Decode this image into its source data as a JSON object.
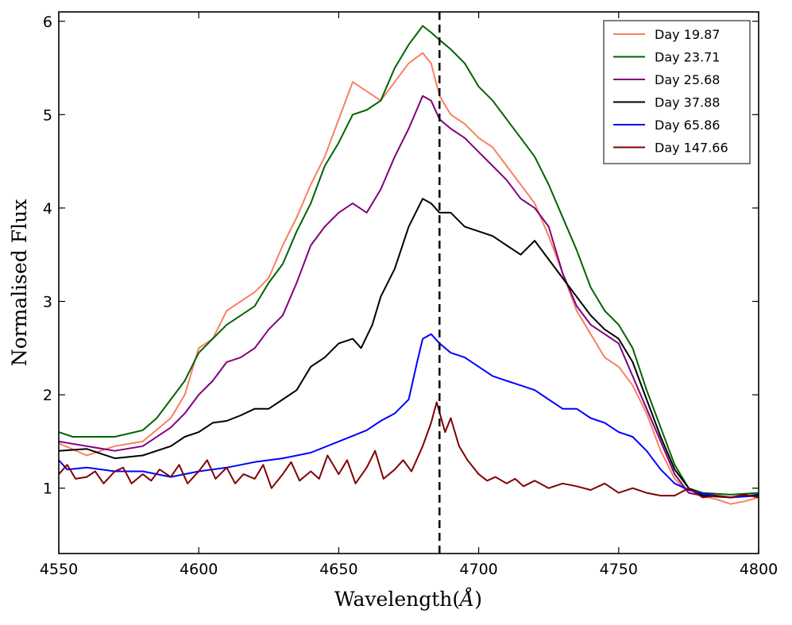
{
  "chart_data": {
    "type": "line",
    "title": "",
    "xlabel": "Wavelength($\\AA$)",
    "xlabel_text": "Wavelength(",
    "xlabel_unit": "Å",
    "xlabel_close": ")",
    "ylabel": "Normalised Flux",
    "xlim": [
      4550,
      4800
    ],
    "ylim": [
      0.3,
      6.1
    ],
    "xticks": [
      4550,
      4600,
      4650,
      4700,
      4750,
      4800
    ],
    "yticks": [
      1,
      2,
      3,
      4,
      5,
      6
    ],
    "legend_position": "top-right",
    "vline": {
      "x": 4686,
      "style": "dashed",
      "color": "#000000"
    },
    "series": [
      {
        "name": "Day 19.87",
        "color": "#fa8060",
        "points": [
          [
            4550,
            1.48
          ],
          [
            4560,
            1.35
          ],
          [
            4570,
            1.45
          ],
          [
            4580,
            1.5
          ],
          [
            4590,
            1.75
          ],
          [
            4595,
            2.0
          ],
          [
            4600,
            2.5
          ],
          [
            4605,
            2.6
          ],
          [
            4610,
            2.9
          ],
          [
            4615,
            3.0
          ],
          [
            4620,
            3.1
          ],
          [
            4625,
            3.25
          ],
          [
            4630,
            3.6
          ],
          [
            4635,
            3.9
          ],
          [
            4640,
            4.25
          ],
          [
            4645,
            4.55
          ],
          [
            4650,
            4.95
          ],
          [
            4655,
            5.35
          ],
          [
            4660,
            5.25
          ],
          [
            4665,
            5.15
          ],
          [
            4670,
            5.35
          ],
          [
            4675,
            5.55
          ],
          [
            4680,
            5.66
          ],
          [
            4683,
            5.55
          ],
          [
            4686,
            5.2
          ],
          [
            4690,
            5.0
          ],
          [
            4695,
            4.9
          ],
          [
            4700,
            4.75
          ],
          [
            4705,
            4.65
          ],
          [
            4710,
            4.45
          ],
          [
            4715,
            4.25
          ],
          [
            4720,
            4.05
          ],
          [
            4725,
            3.7
          ],
          [
            4730,
            3.3
          ],
          [
            4735,
            2.9
          ],
          [
            4740,
            2.65
          ],
          [
            4745,
            2.4
          ],
          [
            4750,
            2.3
          ],
          [
            4755,
            2.1
          ],
          [
            4760,
            1.8
          ],
          [
            4765,
            1.4
          ],
          [
            4770,
            1.1
          ],
          [
            4775,
            0.95
          ],
          [
            4780,
            0.92
          ],
          [
            4785,
            0.88
          ],
          [
            4790,
            0.83
          ],
          [
            4795,
            0.86
          ],
          [
            4800,
            0.9
          ]
        ]
      },
      {
        "name": "Day 23.71",
        "color": "#006400",
        "points": [
          [
            4550,
            1.6
          ],
          [
            4555,
            1.55
          ],
          [
            4560,
            1.55
          ],
          [
            4570,
            1.55
          ],
          [
            4580,
            1.62
          ],
          [
            4585,
            1.75
          ],
          [
            4590,
            1.95
          ],
          [
            4595,
            2.15
          ],
          [
            4600,
            2.45
          ],
          [
            4605,
            2.6
          ],
          [
            4610,
            2.75
          ],
          [
            4615,
            2.85
          ],
          [
            4620,
            2.95
          ],
          [
            4625,
            3.2
          ],
          [
            4630,
            3.4
          ],
          [
            4635,
            3.75
          ],
          [
            4640,
            4.05
          ],
          [
            4645,
            4.45
          ],
          [
            4650,
            4.7
          ],
          [
            4655,
            5.0
          ],
          [
            4660,
            5.05
          ],
          [
            4665,
            5.15
          ],
          [
            4670,
            5.5
          ],
          [
            4675,
            5.75
          ],
          [
            4680,
            5.95
          ],
          [
            4683,
            5.88
          ],
          [
            4686,
            5.8
          ],
          [
            4690,
            5.7
          ],
          [
            4695,
            5.55
          ],
          [
            4700,
            5.3
          ],
          [
            4705,
            5.15
          ],
          [
            4710,
            4.95
          ],
          [
            4715,
            4.75
          ],
          [
            4720,
            4.55
          ],
          [
            4725,
            4.25
          ],
          [
            4730,
            3.9
          ],
          [
            4735,
            3.55
          ],
          [
            4740,
            3.15
          ],
          [
            4745,
            2.9
          ],
          [
            4750,
            2.75
          ],
          [
            4755,
            2.5
          ],
          [
            4760,
            2.05
          ],
          [
            4765,
            1.65
          ],
          [
            4770,
            1.25
          ],
          [
            4775,
            1.0
          ],
          [
            4780,
            0.95
          ],
          [
            4790,
            0.93
          ],
          [
            4800,
            0.95
          ]
        ]
      },
      {
        "name": "Day 25.68",
        "color": "#800080",
        "points": [
          [
            4550,
            1.5
          ],
          [
            4560,
            1.45
          ],
          [
            4570,
            1.4
          ],
          [
            4580,
            1.45
          ],
          [
            4590,
            1.65
          ],
          [
            4595,
            1.8
          ],
          [
            4600,
            2.0
          ],
          [
            4605,
            2.15
          ],
          [
            4610,
            2.35
          ],
          [
            4615,
            2.4
          ],
          [
            4620,
            2.5
          ],
          [
            4625,
            2.7
          ],
          [
            4630,
            2.85
          ],
          [
            4635,
            3.2
          ],
          [
            4640,
            3.6
          ],
          [
            4645,
            3.8
          ],
          [
            4650,
            3.95
          ],
          [
            4655,
            4.05
          ],
          [
            4660,
            3.95
          ],
          [
            4665,
            4.2
          ],
          [
            4670,
            4.55
          ],
          [
            4675,
            4.85
          ],
          [
            4680,
            5.2
          ],
          [
            4683,
            5.15
          ],
          [
            4686,
            4.95
          ],
          [
            4690,
            4.85
          ],
          [
            4695,
            4.75
          ],
          [
            4700,
            4.6
          ],
          [
            4705,
            4.45
          ],
          [
            4710,
            4.3
          ],
          [
            4715,
            4.1
          ],
          [
            4720,
            4.0
          ],
          [
            4725,
            3.8
          ],
          [
            4730,
            3.3
          ],
          [
            4735,
            2.95
          ],
          [
            4740,
            2.75
          ],
          [
            4745,
            2.65
          ],
          [
            4750,
            2.55
          ],
          [
            4755,
            2.2
          ],
          [
            4760,
            1.85
          ],
          [
            4765,
            1.5
          ],
          [
            4770,
            1.15
          ],
          [
            4775,
            0.95
          ],
          [
            4780,
            0.92
          ],
          [
            4790,
            0.9
          ],
          [
            4800,
            0.93
          ]
        ]
      },
      {
        "name": "Day 37.88",
        "color": "#000000",
        "points": [
          [
            4550,
            1.4
          ],
          [
            4560,
            1.42
          ],
          [
            4570,
            1.32
          ],
          [
            4580,
            1.35
          ],
          [
            4590,
            1.45
          ],
          [
            4595,
            1.55
          ],
          [
            4600,
            1.6
          ],
          [
            4605,
            1.7
          ],
          [
            4610,
            1.72
          ],
          [
            4615,
            1.78
          ],
          [
            4620,
            1.85
          ],
          [
            4625,
            1.85
          ],
          [
            4630,
            1.95
          ],
          [
            4635,
            2.05
          ],
          [
            4640,
            2.3
          ],
          [
            4645,
            2.4
          ],
          [
            4650,
            2.55
          ],
          [
            4655,
            2.6
          ],
          [
            4658,
            2.5
          ],
          [
            4662,
            2.75
          ],
          [
            4665,
            3.05
          ],
          [
            4670,
            3.35
          ],
          [
            4675,
            3.8
          ],
          [
            4680,
            4.1
          ],
          [
            4683,
            4.05
          ],
          [
            4686,
            3.95
          ],
          [
            4690,
            3.95
          ],
          [
            4695,
            3.8
          ],
          [
            4700,
            3.75
          ],
          [
            4705,
            3.7
          ],
          [
            4710,
            3.6
          ],
          [
            4715,
            3.5
          ],
          [
            4720,
            3.65
          ],
          [
            4725,
            3.45
          ],
          [
            4730,
            3.25
          ],
          [
            4735,
            3.05
          ],
          [
            4740,
            2.85
          ],
          [
            4745,
            2.7
          ],
          [
            4750,
            2.6
          ],
          [
            4755,
            2.35
          ],
          [
            4760,
            1.95
          ],
          [
            4765,
            1.55
          ],
          [
            4770,
            1.2
          ],
          [
            4775,
            1.0
          ],
          [
            4780,
            0.92
          ],
          [
            4790,
            0.9
          ],
          [
            4800,
            0.93
          ]
        ]
      },
      {
        "name": "Day 65.86",
        "color": "#0000ff",
        "points": [
          [
            4550,
            1.3
          ],
          [
            4553,
            1.2
          ],
          [
            4560,
            1.22
          ],
          [
            4570,
            1.18
          ],
          [
            4580,
            1.18
          ],
          [
            4590,
            1.12
          ],
          [
            4600,
            1.18
          ],
          [
            4610,
            1.22
          ],
          [
            4620,
            1.28
          ],
          [
            4630,
            1.32
          ],
          [
            4640,
            1.38
          ],
          [
            4650,
            1.5
          ],
          [
            4660,
            1.62
          ],
          [
            4665,
            1.72
          ],
          [
            4670,
            1.8
          ],
          [
            4675,
            1.95
          ],
          [
            4678,
            2.35
          ],
          [
            4680,
            2.6
          ],
          [
            4683,
            2.65
          ],
          [
            4686,
            2.55
          ],
          [
            4690,
            2.45
          ],
          [
            4695,
            2.4
          ],
          [
            4700,
            2.3
          ],
          [
            4705,
            2.2
          ],
          [
            4710,
            2.15
          ],
          [
            4715,
            2.1
          ],
          [
            4720,
            2.05
          ],
          [
            4725,
            1.95
          ],
          [
            4730,
            1.85
          ],
          [
            4735,
            1.85
          ],
          [
            4740,
            1.75
          ],
          [
            4745,
            1.7
          ],
          [
            4750,
            1.6
          ],
          [
            4755,
            1.55
          ],
          [
            4760,
            1.4
          ],
          [
            4765,
            1.2
          ],
          [
            4770,
            1.05
          ],
          [
            4775,
            0.98
          ],
          [
            4780,
            0.94
          ],
          [
            4790,
            0.9
          ],
          [
            4800,
            0.92
          ]
        ]
      },
      {
        "name": "Day 147.66",
        "color": "#800000",
        "points": [
          [
            4550,
            1.15
          ],
          [
            4553,
            1.25
          ],
          [
            4556,
            1.1
          ],
          [
            4560,
            1.12
          ],
          [
            4563,
            1.18
          ],
          [
            4566,
            1.05
          ],
          [
            4570,
            1.18
          ],
          [
            4573,
            1.22
          ],
          [
            4576,
            1.05
          ],
          [
            4580,
            1.15
          ],
          [
            4583,
            1.08
          ],
          [
            4586,
            1.2
          ],
          [
            4590,
            1.12
          ],
          [
            4593,
            1.25
          ],
          [
            4596,
            1.05
          ],
          [
            4600,
            1.18
          ],
          [
            4603,
            1.3
          ],
          [
            4606,
            1.1
          ],
          [
            4610,
            1.22
          ],
          [
            4613,
            1.05
          ],
          [
            4616,
            1.15
          ],
          [
            4620,
            1.1
          ],
          [
            4623,
            1.25
          ],
          [
            4626,
            1.0
          ],
          [
            4630,
            1.15
          ],
          [
            4633,
            1.28
          ],
          [
            4636,
            1.08
          ],
          [
            4640,
            1.18
          ],
          [
            4643,
            1.1
          ],
          [
            4646,
            1.35
          ],
          [
            4650,
            1.15
          ],
          [
            4653,
            1.3
          ],
          [
            4656,
            1.05
          ],
          [
            4660,
            1.22
          ],
          [
            4663,
            1.4
          ],
          [
            4666,
            1.1
          ],
          [
            4670,
            1.2
          ],
          [
            4673,
            1.3
          ],
          [
            4676,
            1.18
          ],
          [
            4680,
            1.45
          ],
          [
            4683,
            1.7
          ],
          [
            4685,
            1.92
          ],
          [
            4688,
            1.6
          ],
          [
            4690,
            1.75
          ],
          [
            4693,
            1.45
          ],
          [
            4696,
            1.3
          ],
          [
            4700,
            1.15
          ],
          [
            4703,
            1.08
          ],
          [
            4706,
            1.12
          ],
          [
            4710,
            1.05
          ],
          [
            4713,
            1.1
          ],
          [
            4716,
            1.02
          ],
          [
            4720,
            1.08
          ],
          [
            4725,
            1.0
          ],
          [
            4730,
            1.05
          ],
          [
            4735,
            1.02
          ],
          [
            4740,
            0.98
          ],
          [
            4745,
            1.05
          ],
          [
            4750,
            0.95
          ],
          [
            4755,
            1.0
          ],
          [
            4760,
            0.95
          ],
          [
            4765,
            0.92
          ],
          [
            4770,
            0.92
          ],
          [
            4775,
            1.0
          ],
          [
            4780,
            0.9
          ],
          [
            4785,
            0.92
          ],
          [
            4790,
            0.9
          ],
          [
            4795,
            0.93
          ],
          [
            4800,
            0.9
          ]
        ]
      }
    ]
  }
}
